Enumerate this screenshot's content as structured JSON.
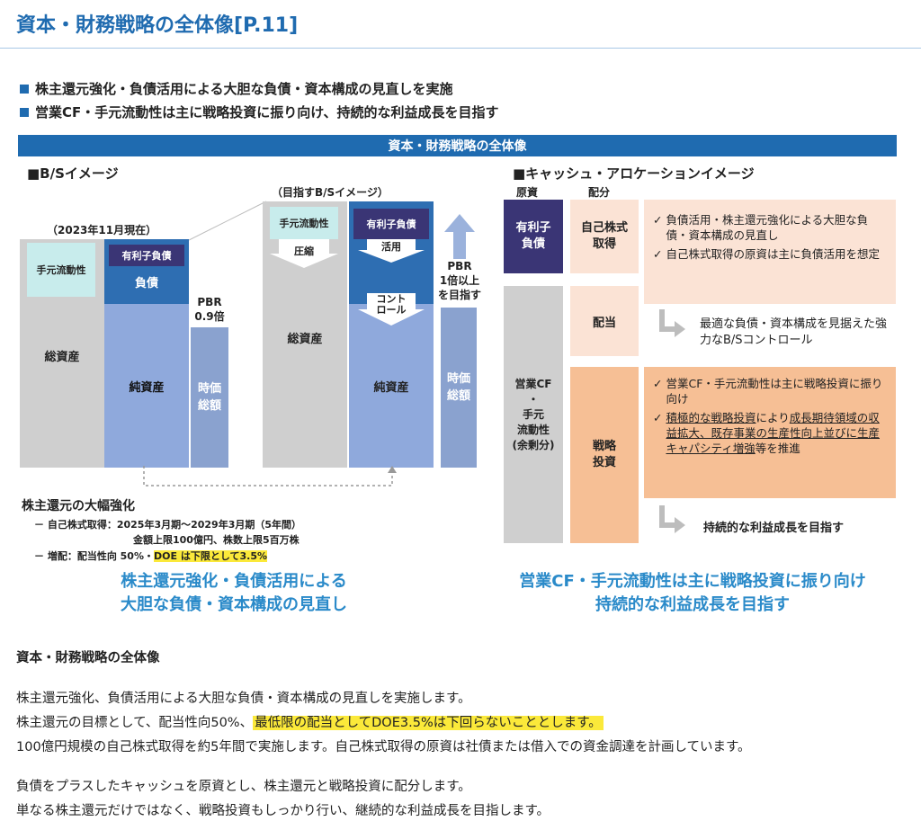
{
  "page": {
    "title": "資本・財務戦略の全体像[P.11]"
  },
  "bullets": [
    "株主還元強化・負債活用による大胆な負債・資本構成の見直しを実施",
    "営業CF・手元流動性は主に戦略投資に振り向け、持続的な利益成長を目指す"
  ],
  "figure": {
    "banner": "資本・財務戦略の全体像",
    "bs": {
      "heading": "■B/Sイメージ",
      "current_label": "（2023年11月現在）",
      "target_label": "（目指すB/Sイメージ）",
      "cash": "手元流動性",
      "total_assets": "総資産",
      "debt_tag": "有利子負債",
      "liabilities": "負債",
      "equity": "純資産",
      "pbr_current": "PBR\n0.9倍",
      "market_cap": "時価\n総額",
      "target_cash": "手元流動性",
      "compress": "圧縮",
      "target_total": "総資産",
      "target_debt": "有利子負債",
      "utilize": "活用",
      "control": "コント\nロール",
      "target_equity": "純資産",
      "pbr_target": "PBR\n1倍以上\nを目指す",
      "target_market_cap": "時価\n総額"
    },
    "shareholder": {
      "heading": "株主還元の大幅強化",
      "line1": "－ 自己株式取得：2025年3月期～2029年3月期（5年間）",
      "line2": "金額上限100億円、株数上限5百万株",
      "line3_prefix": "－ 増配：配当性向 50%・",
      "line3_highlight": "DOE は下限として3.5%"
    },
    "left_summary": "株主還元強化・負債活用による\n大胆な負債・資本構成の見直し",
    "cash_alloc": {
      "heading": "■キャッシュ・アロケーションイメージ",
      "col_source": "原資",
      "col_alloc": "配分",
      "source_debt": "有利子\n負債",
      "source_operating": "営業CF\n・\n手元\n流動性\n(余剰分)",
      "alloc_buyback": "自己株式\n取得",
      "alloc_dividend": "配当",
      "alloc_invest": "戦略\n投資",
      "check1": "負債活用・株主還元強化による大胆な負債・資本構成の見直し",
      "check2": "自己株式取得の原資は主に負債活用を想定",
      "arrow_note1": "最適な負債・資本構成を見据えた強力なB/Sコントロール",
      "check3": "営業CF・手元流動性は主に戦略投資に振り向け",
      "check4_a": "積極的な戦略投資",
      "check4_b": "により",
      "check4_c": "成長期待領域の収益拡大、既存事業の生産性向上並びに生産キャパシティ増強",
      "check4_d": "等を推進",
      "arrow_note2": "持続的な利益成長を目指す"
    },
    "right_summary": "営業CF・手元流動性は主に戦略投資に振り向け\n持続的な利益成長を目指す"
  },
  "body": {
    "heading": "資本・財務戦略の全体像",
    "p1": "株主還元強化、負債活用による大胆な負債・資本構成の見直しを実施します。",
    "p2_prefix": "株主還元の目標として、配当性向50%、",
    "p2_highlight": "最低限の配当としてDOE3.5%は下回らないこととします。",
    "p3": "100億円規模の自己株式取得を約5年間で実施します。自己株式取得の原資は社債または借入での資金調達を計画しています。",
    "p4": "負債をプラスしたキャッシュを原資とし、株主還元と戦略投資に配分します。",
    "p5": "単なる株主還元だけではなく、戦略投資もしっかり行い、継続的な利益成長を目指します。"
  },
  "colors": {
    "title": "#1f6bb0",
    "banner": "#1f6bb0",
    "summary_text": "#2a8ac9",
    "highlight": "#fbe93a",
    "peach": "#fbe3d5",
    "orange": "#f6bf95",
    "navy": "#3a3575"
  }
}
